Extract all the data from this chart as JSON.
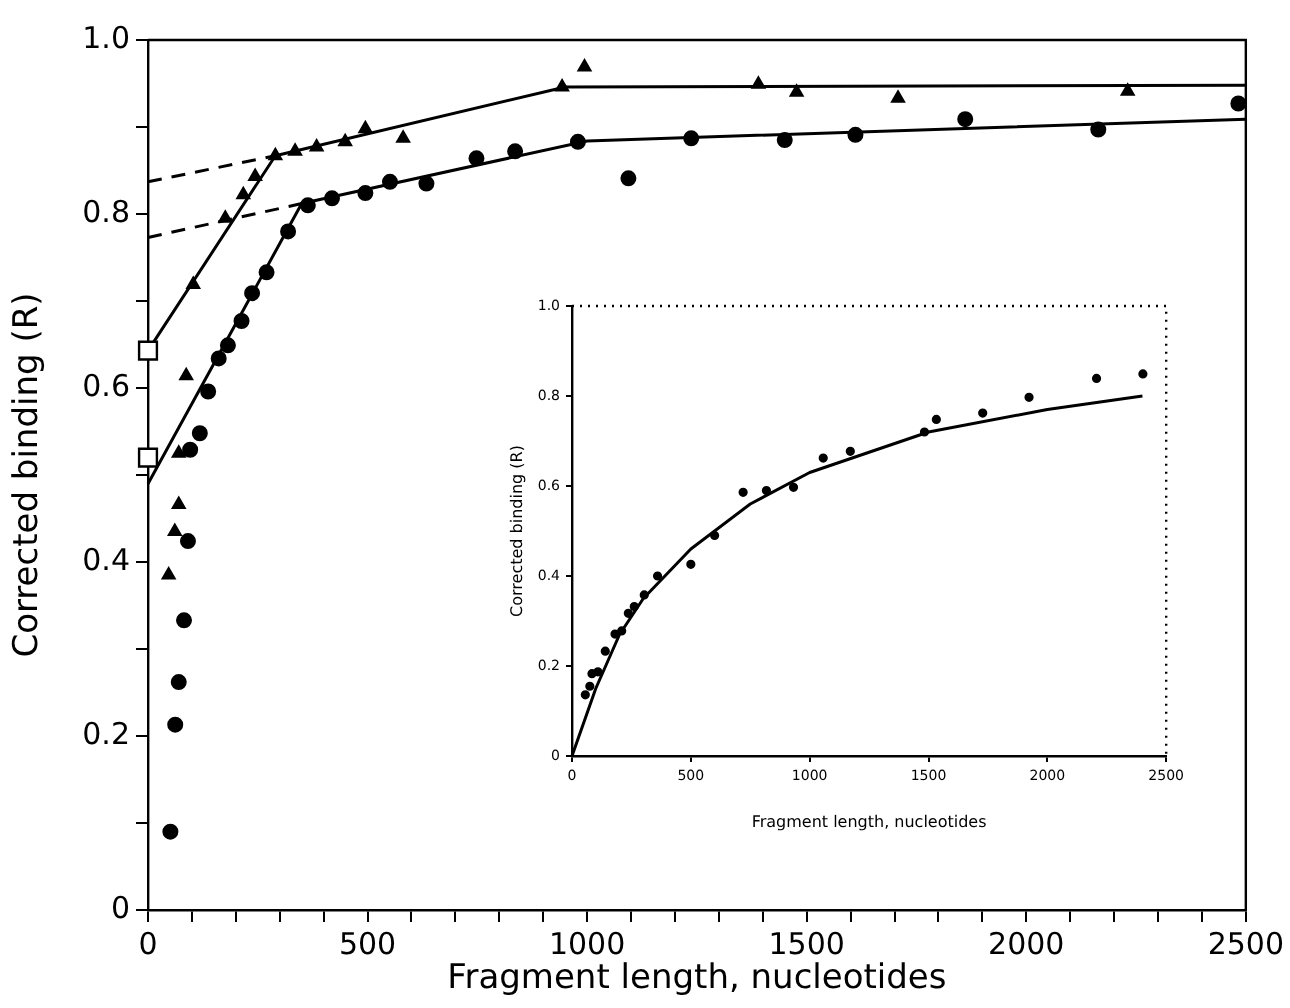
{
  "chart_data": [
    {
      "type": "scatter",
      "xlabel": "Fragment length, nucleotides",
      "ylabel": "Corrected binding (R)",
      "xlim": [
        0,
        2500
      ],
      "ylim": [
        0,
        1.0
      ],
      "xticks": [
        0,
        {
          "value": 100,
          "label": null
        },
        {
          "value": 200,
          "label": null
        },
        {
          "value": 300,
          "label": null
        },
        {
          "value": 400,
          "label": null
        },
        500,
        {
          "value": 600,
          "label": null
        },
        {
          "value": 700,
          "label": null
        },
        {
          "value": 800,
          "label": null
        },
        {
          "value": 900,
          "label": null
        },
        1000,
        {
          "value": 1100,
          "label": null
        },
        {
          "value": 1200,
          "label": null
        },
        {
          "value": 1300,
          "label": null
        },
        {
          "value": 1400,
          "label": null
        },
        1500,
        {
          "value": 1600,
          "label": null
        },
        {
          "value": 1700,
          "label": null
        },
        {
          "value": 1800,
          "label": null
        },
        {
          "value": 1900,
          "label": null
        },
        2000,
        {
          "value": 2100,
          "label": null
        },
        {
          "value": 2200,
          "label": null
        },
        {
          "value": 2300,
          "label": null
        },
        {
          "value": 2400,
          "label": null
        },
        2500
      ],
      "yticks": [
        0,
        {
          "value": 0.1,
          "label": null
        },
        0.2,
        {
          "value": 0.3,
          "label": null
        },
        0.4,
        {
          "value": 0.5,
          "label": null
        },
        0.6,
        {
          "value": 0.7,
          "label": null
        },
        0.8,
        {
          "value": 0.9,
          "label": null
        },
        {
          "value": 1.0,
          "label": "1.0"
        }
      ],
      "grid": false,
      "legend": false,
      "series": [
        {
          "type": "scatter",
          "marker": "triangle",
          "color": "#000000",
          "x": [
            47,
            61,
            70,
            70,
            87,
            103,
            176,
            217,
            244,
            290,
            335,
            384,
            449,
            495,
            581,
            943,
            994,
            1390,
            1477,
            1708,
            2231
          ],
          "values": [
            0.385,
            0.435,
            0.466,
            0.525,
            0.614,
            0.719,
            0.795,
            0.822,
            0.843,
            0.867,
            0.872,
            0.877,
            0.883,
            0.898,
            0.887,
            0.946,
            0.969,
            0.949,
            0.94,
            0.933,
            0.941
          ]
        },
        {
          "type": "scatter",
          "marker": "circle",
          "color": "#000000",
          "x": [
            51,
            62,
            70,
            82,
            91,
            96,
            118,
            137,
            161,
            182,
            213,
            237,
            270,
            319,
            364,
            419,
            495,
            551,
            634,
            748,
            836,
            979,
            1094,
            1237,
            1450,
            1611,
            1861,
            2164,
            2483
          ],
          "values": [
            0.09,
            0.213,
            0.262,
            0.333,
            0.424,
            0.529,
            0.548,
            0.596,
            0.634,
            0.649,
            0.677,
            0.709,
            0.733,
            0.78,
            0.81,
            0.818,
            0.824,
            0.837,
            0.835,
            0.864,
            0.872,
            0.883,
            0.841,
            0.887,
            0.885,
            0.891,
            0.909,
            0.897,
            0.927
          ]
        },
        {
          "type": "line",
          "marker": "none",
          "line_style": "solid",
          "color": "#000000",
          "x": [
            0,
            290,
            950,
            2500
          ],
          "values": [
            0.643,
            0.867,
            0.946,
            0.948
          ]
        },
        {
          "type": "line",
          "marker": "none",
          "line_style": "solid",
          "color": "#000000",
          "x": [
            0,
            350,
            1000,
            2500
          ],
          "values": [
            0.49,
            0.812,
            0.884,
            0.909
          ]
        },
        {
          "type": "line",
          "marker": "none",
          "line_style": "dashed",
          "color": "#000000",
          "x": [
            0,
            290
          ],
          "values": [
            0.837,
            0.867
          ]
        },
        {
          "type": "line",
          "marker": "none",
          "line_style": "dashed",
          "color": "#000000",
          "x": [
            0,
            350
          ],
          "values": [
            0.773,
            0.812
          ]
        },
        {
          "type": "scatter",
          "marker": "square",
          "color": "#000000",
          "x": [
            0,
            0
          ],
          "values": [
            0.643,
            0.52
          ]
        }
      ]
    },
    {
      "type": "scatter",
      "xlabel": "Fragment length, nucleotides",
      "ylabel": "Corrected binding (R)",
      "xlim": [
        0,
        2500
      ],
      "ylim": [
        0,
        1.0
      ],
      "xticks": [
        0,
        500,
        1000,
        1500,
        2000,
        2500
      ],
      "yticks": [
        0,
        0.2,
        0.4,
        0.6,
        0.8,
        {
          "value": 1.0,
          "label": "1.0"
        }
      ],
      "grid": false,
      "legend": false,
      "series": [
        {
          "type": "scatter",
          "marker": "circle",
          "color": "#000000",
          "x": [
            56,
            75,
            84,
            109,
            140,
            181,
            209,
            237,
            262,
            304,
            360,
            500,
            600,
            720,
            818,
            932,
            1057,
            1171,
            1483,
            1533,
            1728,
            1923,
            2207,
            2402
          ],
          "values": [
            0.136,
            0.155,
            0.183,
            0.187,
            0.233,
            0.271,
            0.278,
            0.317,
            0.332,
            0.358,
            0.4,
            0.426,
            0.49,
            0.586,
            0.59,
            0.597,
            0.662,
            0.677,
            0.72,
            0.748,
            0.762,
            0.797,
            0.839,
            0.849
          ]
        },
        {
          "type": "line",
          "marker": "none",
          "line_style": "solid",
          "color": "#000000",
          "x": [
            0,
            100,
            200,
            300,
            500,
            750,
            1000,
            1500,
            2000,
            2400
          ],
          "values": [
            0,
            0.15,
            0.27,
            0.35,
            0.46,
            0.56,
            0.63,
            0.72,
            0.77,
            0.8
          ]
        }
      ]
    }
  ]
}
